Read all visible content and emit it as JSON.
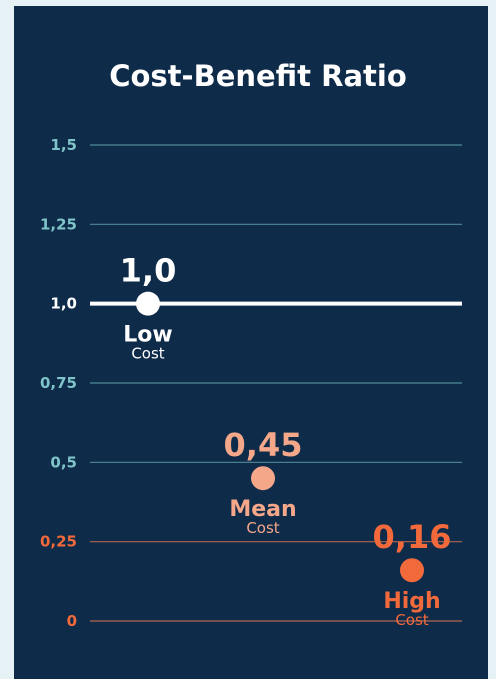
{
  "colors": {
    "background": "#0e2b49",
    "page": "#e6f2f6",
    "teal": "#7fc4c8",
    "white": "#ffffff",
    "mean": "#f5a78a",
    "high": "#f26a3c",
    "grid_teal": "#4f8a98",
    "grid_orange": "#b4644f"
  },
  "chart_data": {
    "type": "scatter",
    "title": "Cost-Benefit Ratio",
    "ylim": [
      0,
      1.5
    ],
    "y_ticks": [
      {
        "value": 1.5,
        "label": "1,5"
      },
      {
        "value": 1.25,
        "label": "1,25"
      },
      {
        "value": 1.0,
        "label": "1,0"
      },
      {
        "value": 0.75,
        "label": "0,75"
      },
      {
        "value": 0.5,
        "label": "0,5"
      },
      {
        "value": 0.25,
        "label": "0,25"
      },
      {
        "value": 0,
        "label": "0"
      }
    ],
    "highlight_line": 1.0,
    "points": [
      {
        "category": "Low",
        "sublabel": "Cost",
        "value": 1.0,
        "label": "1,0",
        "color": "#ffffff"
      },
      {
        "category": "Mean",
        "sublabel": "Cost",
        "value": 0.45,
        "label": "0,45",
        "color": "#f5a78a"
      },
      {
        "category": "High",
        "sublabel": "Cost",
        "value": 0.16,
        "label": "0,16",
        "color": "#f26a3c"
      }
    ],
    "grid": true,
    "legend": "none"
  }
}
